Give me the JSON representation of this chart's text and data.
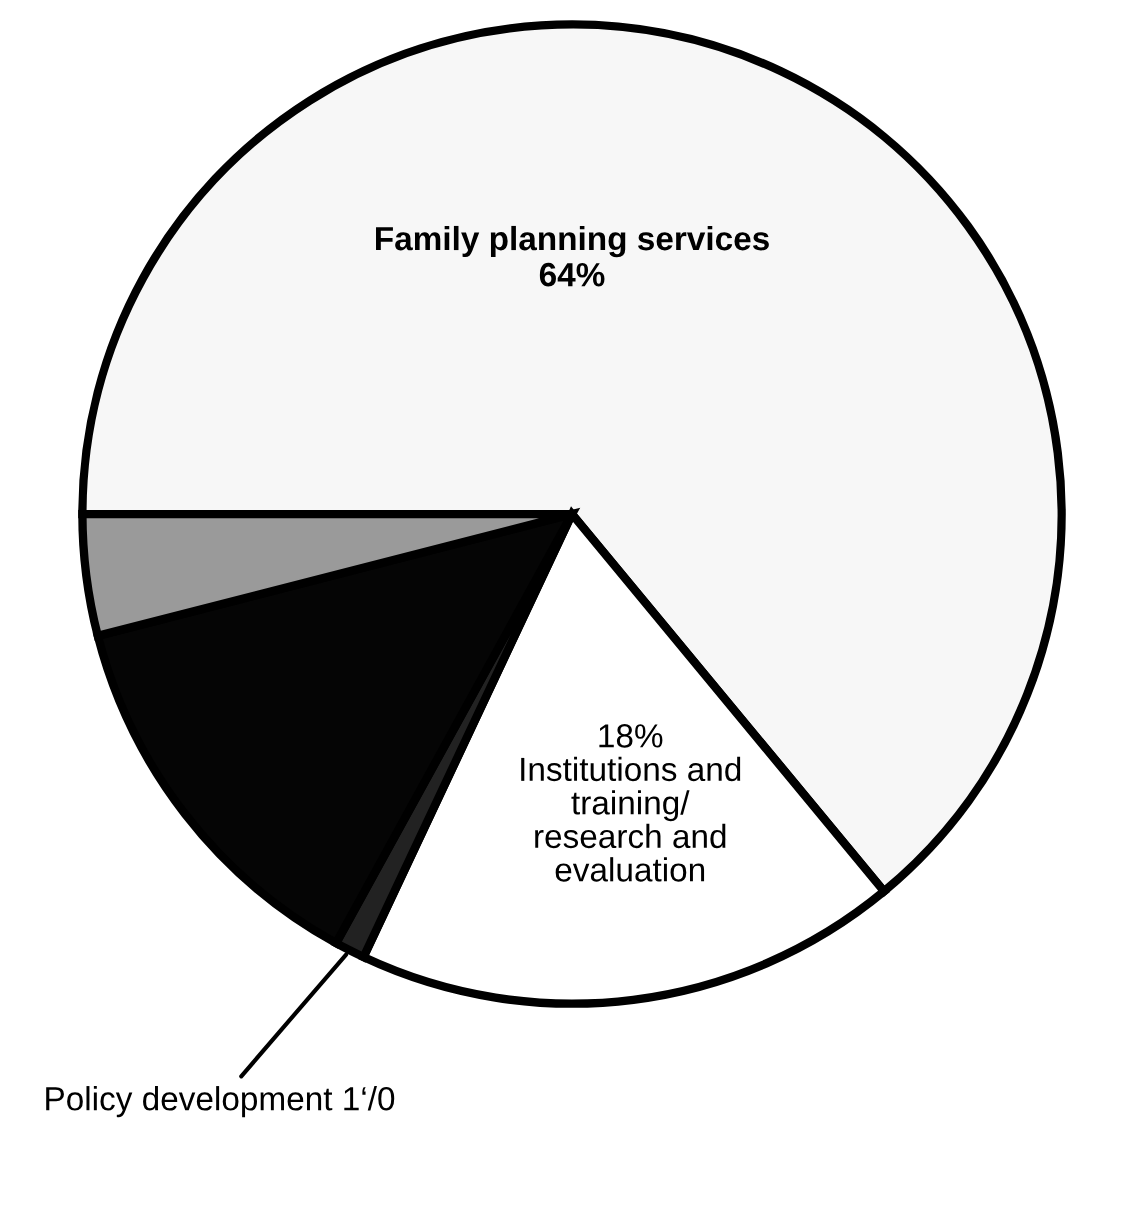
{
  "chart_data": {
    "type": "pie",
    "categories": [
      "Family planning services\n64%",
      "18%\nInstitutions and\ntraining/\nresearch and\nevaluation",
      "Policy development 1‘/0",
      null,
      null
    ],
    "values": [
      64,
      18,
      1,
      13,
      4
    ],
    "colors": [
      "#f7f7f7",
      "#ffffff",
      "#222222",
      "#050505",
      "#9a9a9a"
    ]
  }
}
